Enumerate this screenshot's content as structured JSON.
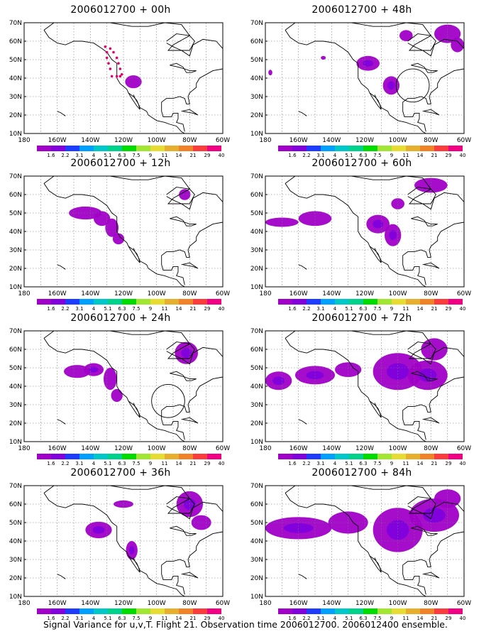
{
  "footer": "Signal Variance for u,v,T. Flight 21. Observation time 2006012700. 2006012400 ensemble.",
  "lat_labels": [
    "70N",
    "60N",
    "50N",
    "40N",
    "30N",
    "20N",
    "10N"
  ],
  "lon_labels": [
    "180",
    "160W",
    "140W",
    "120W",
    "100W",
    "80W",
    "60W"
  ],
  "colorbar": {
    "colors": [
      "#a000c8",
      "#8200dc",
      "#1e3cff",
      "#00a0ff",
      "#00c8c8",
      "#00d28c",
      "#00dc00",
      "#a0e632",
      "#e6dc32",
      "#e6af2d",
      "#f08228",
      "#fa3c3c",
      "#f00082"
    ],
    "labels": [
      "1.6",
      "2.2",
      "3.1",
      "4",
      "5.1",
      "6.3",
      "7.5",
      "9",
      "11",
      "14",
      "21",
      "29",
      "40"
    ]
  },
  "panels": [
    {
      "id": "p00",
      "title": "2006012700 + 00h",
      "blobs": [
        {
          "lon": -114,
          "lat": 38,
          "rx": 5,
          "ry": 3.5,
          "core": false
        }
      ],
      "dots": [
        [
          -131,
          57
        ],
        [
          -130,
          54
        ],
        [
          -130,
          51
        ],
        [
          -129,
          48
        ],
        [
          -128,
          45
        ],
        [
          -127,
          41
        ],
        [
          -124,
          41
        ],
        [
          -122,
          41
        ],
        [
          -121,
          42
        ],
        [
          -122,
          45
        ],
        [
          -123,
          48
        ],
        [
          -124,
          51
        ],
        [
          -126,
          54
        ],
        [
          -128,
          56
        ]
      ],
      "circle": null
    },
    {
      "id": "p12",
      "title": "2006012700 + 12h",
      "blobs": [
        {
          "lon": -143,
          "lat": 50,
          "rx": 10,
          "ry": 3.5,
          "core": false
        },
        {
          "lon": -133,
          "lat": 47,
          "rx": 5,
          "ry": 4,
          "core": false
        },
        {
          "lon": -127,
          "lat": 42,
          "rx": 4,
          "ry": 5,
          "core": false
        },
        {
          "lon": -123,
          "lat": 36,
          "rx": 3.5,
          "ry": 3,
          "core": false
        },
        {
          "lon": -83,
          "lat": 60,
          "rx": 3.5,
          "ry": 3,
          "core": false
        }
      ],
      "dots": [],
      "circle": null
    },
    {
      "id": "p24",
      "title": "2006012700 + 24h",
      "blobs": [
        {
          "lon": -148,
          "lat": 48,
          "rx": 8,
          "ry": 3.5,
          "core": false
        },
        {
          "lon": -138,
          "lat": 49,
          "rx": 6,
          "ry": 3.5,
          "core": true
        },
        {
          "lon": -128,
          "lat": 44,
          "rx": 4,
          "ry": 6,
          "core": false
        },
        {
          "lon": -124,
          "lat": 35,
          "rx": 3.5,
          "ry": 3.5,
          "core": false
        },
        {
          "lon": -82,
          "lat": 58,
          "rx": 7,
          "ry": 6,
          "core": true
        }
      ],
      "dots": [],
      "circle": {
        "lon": -93,
        "lat": 32,
        "r": 10
      }
    },
    {
      "id": "p36",
      "title": "2006012700 + 36h",
      "blobs": [
        {
          "lon": -135,
          "lat": 46,
          "rx": 8,
          "ry": 4.5,
          "core": true
        },
        {
          "lon": -120,
          "lat": 60,
          "rx": 6,
          "ry": 2,
          "core": false
        },
        {
          "lon": -115,
          "lat": 35,
          "rx": 3.5,
          "ry": 5,
          "core": true
        },
        {
          "lon": -80,
          "lat": 60,
          "rx": 8,
          "ry": 7,
          "core": true
        },
        {
          "lon": -73,
          "lat": 50,
          "rx": 6,
          "ry": 4,
          "core": false
        }
      ],
      "dots": [],
      "circle": null
    },
    {
      "id": "p48",
      "title": "2006012700 + 48h",
      "blobs": [
        {
          "lon": -95,
          "lat": 63,
          "rx": 4,
          "ry": 3,
          "core": false
        },
        {
          "lon": -70,
          "lat": 64,
          "rx": 8,
          "ry": 5,
          "core": false
        },
        {
          "lon": -64,
          "lat": 58,
          "rx": 4,
          "ry": 4,
          "core": false
        },
        {
          "lon": -118,
          "lat": 48,
          "rx": 7,
          "ry": 4,
          "core": true
        },
        {
          "lon": -145,
          "lat": 51,
          "rx": 1.5,
          "ry": 1,
          "core": false
        },
        {
          "lon": -177,
          "lat": 43,
          "rx": 1.2,
          "ry": 1.5,
          "core": false
        },
        {
          "lon": -104,
          "lat": 36,
          "rx": 5,
          "ry": 5,
          "core": true
        }
      ],
      "dots": [],
      "circle": {
        "lon": -91,
        "lat": 36,
        "r": 10
      }
    },
    {
      "id": "p60",
      "title": "2006012700 + 60h",
      "blobs": [
        {
          "lon": -170,
          "lat": 45,
          "rx": 10,
          "ry": 2.5,
          "core": false
        },
        {
          "lon": -150,
          "lat": 47,
          "rx": 10,
          "ry": 4,
          "core": false
        },
        {
          "lon": -112,
          "lat": 44,
          "rx": 7,
          "ry": 5,
          "core": true
        },
        {
          "lon": -103,
          "lat": 38,
          "rx": 5,
          "ry": 6,
          "core": true
        },
        {
          "lon": -100,
          "lat": 55,
          "rx": 4,
          "ry": 3,
          "core": false
        },
        {
          "lon": -80,
          "lat": 65,
          "rx": 10,
          "ry": 4,
          "core": false
        }
      ],
      "dots": [],
      "circle": null
    },
    {
      "id": "p72",
      "title": "2006012700 + 72h",
      "blobs": [
        {
          "lon": -172,
          "lat": 43,
          "rx": 8,
          "ry": 5,
          "core": true
        },
        {
          "lon": -150,
          "lat": 46,
          "rx": 12,
          "ry": 5,
          "core": true
        },
        {
          "lon": -130,
          "lat": 49,
          "rx": 8,
          "ry": 4,
          "core": false
        },
        {
          "lon": -100,
          "lat": 48,
          "rx": 15,
          "ry": 10,
          "core": true
        },
        {
          "lon": -82,
          "lat": 46,
          "rx": 12,
          "ry": 8,
          "core": true
        },
        {
          "lon": -78,
          "lat": 60,
          "rx": 8,
          "ry": 6,
          "core": false
        }
      ],
      "dots": [],
      "circle": null
    },
    {
      "id": "p84",
      "title": "2006012700 + 84h",
      "blobs": [
        {
          "lon": -160,
          "lat": 47,
          "rx": 20,
          "ry": 6,
          "core": true
        },
        {
          "lon": -130,
          "lat": 50,
          "rx": 12,
          "ry": 6,
          "core": false
        },
        {
          "lon": -100,
          "lat": 46,
          "rx": 15,
          "ry": 12,
          "core": true
        },
        {
          "lon": -78,
          "lat": 54,
          "rx": 15,
          "ry": 9,
          "core": true
        },
        {
          "lon": -70,
          "lat": 63,
          "rx": 8,
          "ry": 5,
          "core": false
        }
      ],
      "dots": [],
      "circle": null
    }
  ]
}
